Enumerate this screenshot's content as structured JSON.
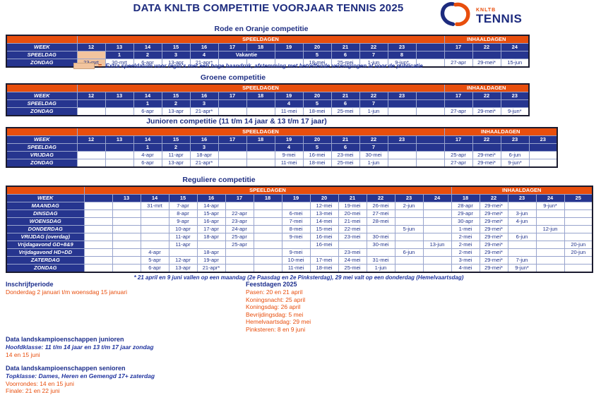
{
  "header": {
    "title": "DATA KNLTB COMPETITIE VOORJAAR TENNIS 2025",
    "logo": {
      "brand_small": "KNLTB",
      "brand_large": "TENNIS"
    }
  },
  "colors": {
    "orange": "#E84E0D",
    "blue": "#26358F",
    "navy": "#1D2B7E",
    "peach": "#F2C49E"
  },
  "footnotes": {
    "legend_symbol": "=",
    "legend_text": "Extra speeldatum voor regio's met een hoge baandruk, afstemming met betreffende verenigingen al voor de publicatie",
    "reguliere_note": "* 21 april en 9 juni vallen op een maandag (2e Paasdag en 2e Pinksterdag), 29 mei valt op een donderdag (Hemelvaartsdag)"
  },
  "tables": [
    {
      "title": "Rode en Oranje competitie",
      "bands": {
        "speeldagen": "SPEELDAGEN",
        "inhaaldagen": "INHAALDAGEN"
      },
      "week_label": "WEEK",
      "weeks": [
        "12",
        "13",
        "14",
        "15",
        "16",
        "17",
        "18",
        "19",
        "20",
        "21",
        "22",
        "23",
        ""
      ],
      "inhaal_weeks": [
        "17",
        "22",
        "24"
      ],
      "rows": [
        {
          "label": "SPEELDAG",
          "kind": "num",
          "cells": [
            {
              "t": "",
              "peach": true
            },
            "1",
            "2",
            "3",
            "4",
            {
              "t": "Vakantie",
              "span": 2
            },
            "",
            "5",
            "6",
            "7",
            "8",
            ""
          ],
          "inhaal": [
            "",
            "",
            ""
          ]
        },
        {
          "label": "ZONDAG",
          "kind": "date",
          "cells": [
            {
              "t": "23-mrt",
              "peach": true
            },
            "30-mrt",
            "6-apr",
            "13-apr",
            "21-apr*",
            "",
            "",
            "",
            "18-mei",
            "25-mei",
            "1-jun",
            "9-jun*",
            ""
          ],
          "inhaal": [
            "27-apr",
            "29-mei*",
            "15-jun"
          ]
        }
      ]
    },
    {
      "title": "Groene competitie",
      "bands": {
        "speeldagen": "SPEELDAGEN",
        "inhaaldagen": "INHAALDAGEN"
      },
      "week_label": "WEEK",
      "weeks": [
        "12",
        "13",
        "14",
        "15",
        "16",
        "17",
        "18",
        "19",
        "20",
        "21",
        "22",
        "23",
        ""
      ],
      "inhaal_weeks": [
        "17",
        "22",
        "23"
      ],
      "rows": [
        {
          "label": "SPEELDAG",
          "kind": "num",
          "cells": [
            "",
            "",
            "1",
            "2",
            "3",
            "",
            "",
            "4",
            "5",
            "6",
            "7",
            "",
            ""
          ],
          "inhaal": [
            "",
            "",
            ""
          ]
        },
        {
          "label": "ZONDAG",
          "kind": "date",
          "cells": [
            "",
            "",
            "6-apr",
            "13-apr",
            "21-apr*",
            "",
            "",
            "11-mei",
            "18-mei",
            "25-mei",
            "1-jun",
            "",
            ""
          ],
          "inhaal": [
            "27-apr",
            "29-mei*",
            "9-jun*"
          ]
        }
      ]
    },
    {
      "title": "Junioren competitie (11 t/m 14 jaar & 13 t/m 17 jaar)",
      "bands": {
        "speeldagen": "SPEELDAGEN",
        "inhaaldagen": "INHAALDAGEN"
      },
      "week_label": "WEEK",
      "weeks": [
        "12",
        "13",
        "14",
        "15",
        "16",
        "17",
        "18",
        "19",
        "20",
        "21",
        "22",
        "23",
        ""
      ],
      "inhaal_weeks": [
        "17",
        "22",
        "23",
        "23"
      ],
      "rows": [
        {
          "label": "SPEELDAG",
          "kind": "num",
          "cells": [
            "",
            "",
            "1",
            "2",
            "3",
            "",
            "",
            "4",
            "5",
            "6",
            "7",
            "",
            ""
          ],
          "inhaal": [
            "",
            "",
            "",
            ""
          ]
        },
        {
          "label": "VRIJDAG",
          "kind": "date",
          "cells": [
            "",
            "",
            "4-apr",
            "11-apr",
            "18-apr",
            "",
            "",
            "9-mei",
            "16-mei",
            "23-mei",
            "30-mei",
            "",
            ""
          ],
          "inhaal": [
            "25-apr",
            "29-mei*",
            "6-jun",
            ""
          ]
        },
        {
          "label": "ZONDAG",
          "kind": "date",
          "cells": [
            "",
            "",
            "6-apr",
            "13-apr",
            "21-apr*",
            "",
            "",
            "11-mei",
            "18-mei",
            "25-mei",
            "1-jun",
            "",
            ""
          ],
          "inhaal": [
            "27-apr",
            "29-mei*",
            "9-jun*",
            ""
          ]
        }
      ]
    },
    {
      "title": "Reguliere competitie",
      "bands": {
        "speeldagen": "SPEELDAGEN",
        "inhaaldagen": "INHAALDAGEN"
      },
      "week_label": "WEEK",
      "weeks": [
        "",
        "13",
        "14",
        "15",
        "16",
        "17",
        "18",
        "19",
        "20",
        "21",
        "22",
        "23",
        "24"
      ],
      "inhaal_weeks": [
        "18",
        "22",
        "23",
        "24",
        "25"
      ],
      "rows": [
        {
          "label": "MAANDAG",
          "kind": "date",
          "cells": [
            "",
            "",
            "31-mrt",
            "7-apr",
            "14-apr",
            "",
            "",
            "",
            "12-mei",
            "19-mei",
            "26-mei",
            "2-jun",
            ""
          ],
          "inhaal": [
            "28-apr",
            "29-mei*",
            "",
            "9-jun*",
            ""
          ]
        },
        {
          "label": "DINSDAG",
          "kind": "date",
          "cells": [
            "",
            "",
            "",
            "8-apr",
            "15-apr",
            "22-apr",
            "",
            "6-mei",
            "13-mei",
            "20-mei",
            "27-mei",
            "",
            ""
          ],
          "inhaal": [
            "29-apr",
            "29-mei*",
            "3-jun",
            "",
            ""
          ]
        },
        {
          "label": "WOENSDAG",
          "kind": "date",
          "cells": [
            "",
            "",
            "",
            "9-apr",
            "16-apr",
            "23-apr",
            "",
            "7-mei",
            "14-mei",
            "21-mei",
            "28-mei",
            "",
            ""
          ],
          "inhaal": [
            "30-apr",
            "29-mei*",
            "4-jun",
            "",
            ""
          ]
        },
        {
          "label": "DONDERDAG",
          "kind": "date",
          "cells": [
            "",
            "",
            "",
            "10-apr",
            "17-apr",
            "24-apr",
            "",
            "8-mei",
            "15-mei",
            "22-mei",
            "",
            "5-jun",
            ""
          ],
          "inhaal": [
            "1-mei",
            "29-mei*",
            "",
            "12-jun",
            ""
          ]
        },
        {
          "label": "VRIJDAG (overdag)",
          "kind": "date",
          "cells": [
            "",
            "",
            "",
            "11-apr",
            "18-apr",
            "25-apr",
            "",
            "9-mei",
            "16-mei",
            "23-mei",
            "30-mei",
            "",
            ""
          ],
          "inhaal": [
            "2-mei",
            "29-mei*",
            "6-jun",
            "",
            ""
          ]
        },
        {
          "label": "Vrijdagavond GD+8&9",
          "kind": "date",
          "cells": [
            "",
            "",
            "",
            "11-apr",
            "",
            "25-apr",
            "",
            "",
            "16-mei",
            "",
            "30-mei",
            "",
            "13-jun"
          ],
          "inhaal": [
            "2-mei",
            "29-mei*",
            "",
            "",
            "20-jun"
          ]
        },
        {
          "label": "Vrijdagavond HD+DD",
          "kind": "date",
          "cells": [
            "",
            "",
            "4-apr",
            "",
            "18-apr",
            "",
            "",
            "9-mei",
            "",
            "23-mei",
            "",
            "6-jun",
            ""
          ],
          "inhaal": [
            "2-mei",
            "29-mei*",
            "",
            "",
            "20-jun"
          ]
        },
        {
          "label": "ZATERDAG",
          "kind": "date",
          "cells": [
            "",
            "",
            "5-apr",
            "12-apr",
            "19-apr",
            "",
            "",
            "10-mei",
            "17-mei",
            "24-mei",
            "31-mei",
            "",
            ""
          ],
          "inhaal": [
            "3-mei",
            "29-mei*",
            "7-jun",
            "",
            ""
          ]
        },
        {
          "label": "ZONDAG",
          "kind": "date",
          "cells": [
            "",
            "",
            "6-apr",
            "13-apr",
            "21-apr*",
            "",
            "",
            "11-mei",
            "18-mei",
            "25-mei",
            "1-jun",
            "",
            ""
          ],
          "inhaal": [
            "4-mei",
            "29-mei*",
            "9-jun*",
            "",
            ""
          ]
        }
      ]
    }
  ],
  "sections": {
    "inschrijfperiode": {
      "title": "Inschrijfperiode",
      "lines": [
        [
          "orange",
          "Donderdag 2 januari t/m woensdag 15 januari"
        ]
      ]
    },
    "feestdagen": {
      "title": "Feestdagen 2025",
      "lines": [
        [
          "orange",
          "Pasen: 20 en 21 april"
        ],
        [
          "orange",
          "Koningsnacht: 25 april"
        ],
        [
          "orange",
          "Koningsdag: 26 april"
        ],
        [
          "orange",
          "Bevrijdingsdag: 5 mei"
        ],
        [
          "orange",
          "Hemelvaartsdag: 29 mei"
        ],
        [
          "orange",
          "Pinksteren: 8 en 9 juni"
        ]
      ]
    },
    "lk_junioren": {
      "title": "Data landskampioenschappen junioren",
      "lines": [
        [
          "blue-italic",
          "Hoofdklasse: 11 t/m 14 jaar en 13 t/m 17 jaar zondag"
        ],
        [
          "orange",
          "14 en 15 juni"
        ]
      ]
    },
    "lk_senioren": {
      "title": "Data landskampioenschappen senioren",
      "lines": [
        [
          "blue-italic",
          "Topklasse: Dames, Heren en Gemengd 17+ zaterdag"
        ],
        [
          "orange",
          "Voorrondes: 14 en 15 juni"
        ],
        [
          "orange",
          "Finale: 21 en 22 juni"
        ]
      ]
    }
  }
}
